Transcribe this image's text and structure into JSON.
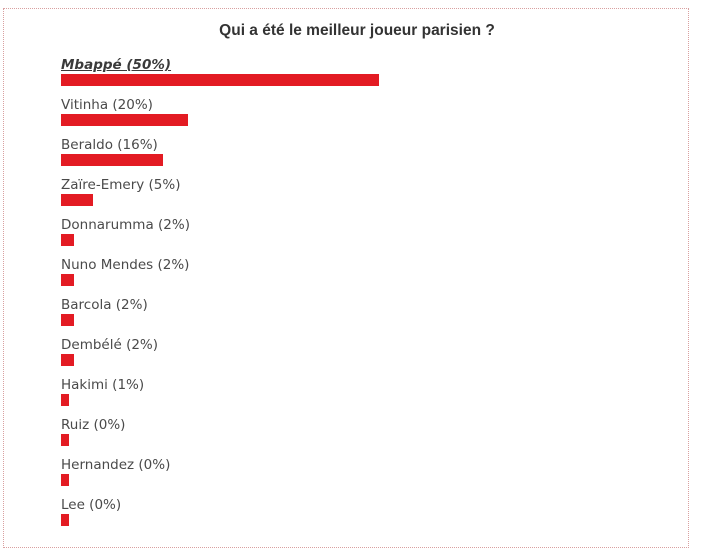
{
  "poll": {
    "title": "Qui a été le meilleur joueur parisien ?"
  },
  "colors": {
    "bar": "#e31b23",
    "title": "#333333",
    "label": "#4a4a4a"
  },
  "chart_data": {
    "type": "bar",
    "orientation": "horizontal",
    "title": "Qui a été le meilleur joueur parisien ?",
    "xlabel": "",
    "ylabel": "",
    "unit": "%",
    "xlim": [
      0,
      100
    ],
    "categories": [
      "Mbappé",
      "Vitinha",
      "Beraldo",
      "Zaïre-Emery",
      "Donnarumma",
      "Nuno Mendes",
      "Barcola",
      "Dembélé",
      "Hakimi",
      "Ruiz",
      "Hernandez",
      "Lee"
    ],
    "values": [
      50,
      20,
      16,
      5,
      2,
      2,
      2,
      2,
      1,
      0,
      0,
      0
    ],
    "labels": [
      "Mbappé (50%)",
      "Vitinha (20%)",
      "Beraldo (16%)",
      "Zaïre-Emery (5%)",
      "Donnarumma (2%)",
      "Nuno Mendes (2%)",
      "Barcola (2%)",
      "Dembélé (2%)",
      "Hakimi (1%)",
      "Ruiz (0%)",
      "Hernandez (0%)",
      "Lee (0%)"
    ],
    "highlight_index": 0
  }
}
